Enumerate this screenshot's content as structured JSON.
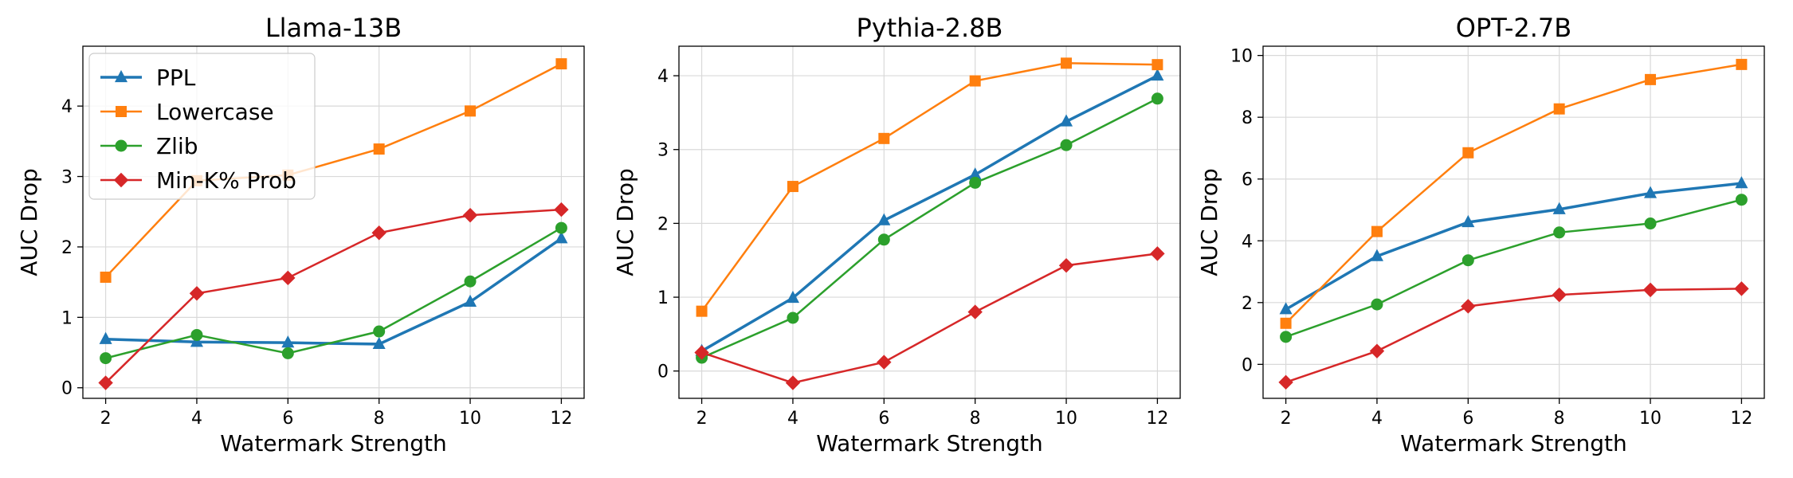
{
  "chart_data": [
    {
      "type": "line",
      "title": "Llama-13B",
      "xlabel": "Watermark Strength",
      "ylabel": "AUC Drop",
      "x": [
        2,
        4,
        6,
        8,
        10,
        12
      ],
      "xticks": [
        "2",
        "4",
        "6",
        "8",
        "10",
        "12"
      ],
      "xlim": [
        1.5,
        12.5
      ],
      "ylim": [
        -0.15,
        4.85
      ],
      "yticks": [
        "0",
        "1",
        "2",
        "3",
        "4"
      ],
      "yticks_values": [
        0,
        1,
        2,
        3,
        4
      ],
      "grid": true,
      "legend": "upper-left",
      "series": [
        {
          "name": "PPL",
          "color": "#1f77b4",
          "marker": "triangle",
          "values": [
            0.69,
            0.65,
            0.64,
            0.62,
            1.22,
            2.12
          ]
        },
        {
          "name": "Lowercase",
          "color": "#ff7f0e",
          "marker": "square",
          "values": [
            1.57,
            2.94,
            3.02,
            3.39,
            3.93,
            4.6
          ]
        },
        {
          "name": "Zlib",
          "color": "#2ca02c",
          "marker": "circle",
          "values": [
            0.42,
            0.75,
            0.49,
            0.8,
            1.51,
            2.27
          ]
        },
        {
          "name": "Min-K% Prob",
          "color": "#d62728",
          "marker": "diamond",
          "values": [
            0.07,
            1.34,
            1.56,
            2.2,
            2.45,
            2.53
          ]
        }
      ]
    },
    {
      "type": "line",
      "title": "Pythia-2.8B",
      "xlabel": "Watermark Strength",
      "ylabel": "AUC Drop",
      "x": [
        2,
        4,
        6,
        8,
        10,
        12
      ],
      "xticks": [
        "2",
        "4",
        "6",
        "8",
        "10",
        "12"
      ],
      "xlim": [
        1.5,
        12.5
      ],
      "ylim": [
        -0.37,
        4.4
      ],
      "yticks": [
        "0",
        "1",
        "2",
        "3",
        "4"
      ],
      "yticks_values": [
        0,
        1,
        2,
        3,
        4
      ],
      "grid": true,
      "series": [
        {
          "name": "PPL",
          "color": "#1f77b4",
          "marker": "triangle",
          "values": [
            0.27,
            0.99,
            2.04,
            2.66,
            3.38,
            4.0
          ]
        },
        {
          "name": "Lowercase",
          "color": "#ff7f0e",
          "marker": "square",
          "values": [
            0.81,
            2.5,
            3.15,
            3.93,
            4.17,
            4.15
          ]
        },
        {
          "name": "Zlib",
          "color": "#2ca02c",
          "marker": "circle",
          "values": [
            0.18,
            0.72,
            1.78,
            2.55,
            3.06,
            3.69
          ]
        },
        {
          "name": "Min-K% Prob",
          "color": "#d62728",
          "marker": "diamond",
          "values": [
            0.25,
            -0.16,
            0.12,
            0.8,
            1.43,
            1.59
          ]
        }
      ]
    },
    {
      "type": "line",
      "title": "OPT-2.7B",
      "xlabel": "Watermark Strength",
      "ylabel": "AUC Drop",
      "x": [
        2,
        4,
        6,
        8,
        10,
        12
      ],
      "xticks": [
        "2",
        "4",
        "6",
        "8",
        "10",
        "12"
      ],
      "xlim": [
        1.5,
        12.5
      ],
      "ylim": [
        -1.1,
        10.3
      ],
      "yticks": [
        "0",
        "2",
        "4",
        "6",
        "8",
        "10"
      ],
      "yticks_values": [
        0,
        2,
        4,
        6,
        8,
        10
      ],
      "grid": true,
      "series": [
        {
          "name": "PPL",
          "color": "#1f77b4",
          "marker": "triangle",
          "values": [
            1.78,
            3.5,
            4.6,
            5.02,
            5.54,
            5.86
          ]
        },
        {
          "name": "Lowercase",
          "color": "#ff7f0e",
          "marker": "square",
          "values": [
            1.33,
            4.3,
            6.85,
            8.27,
            9.22,
            9.71
          ]
        },
        {
          "name": "Zlib",
          "color": "#2ca02c",
          "marker": "circle",
          "values": [
            0.89,
            1.94,
            3.37,
            4.27,
            4.56,
            5.33
          ]
        },
        {
          "name": "Min-K% Prob",
          "color": "#d62728",
          "marker": "diamond",
          "values": [
            -0.58,
            0.43,
            1.88,
            2.25,
            2.41,
            2.45
          ]
        }
      ]
    }
  ]
}
